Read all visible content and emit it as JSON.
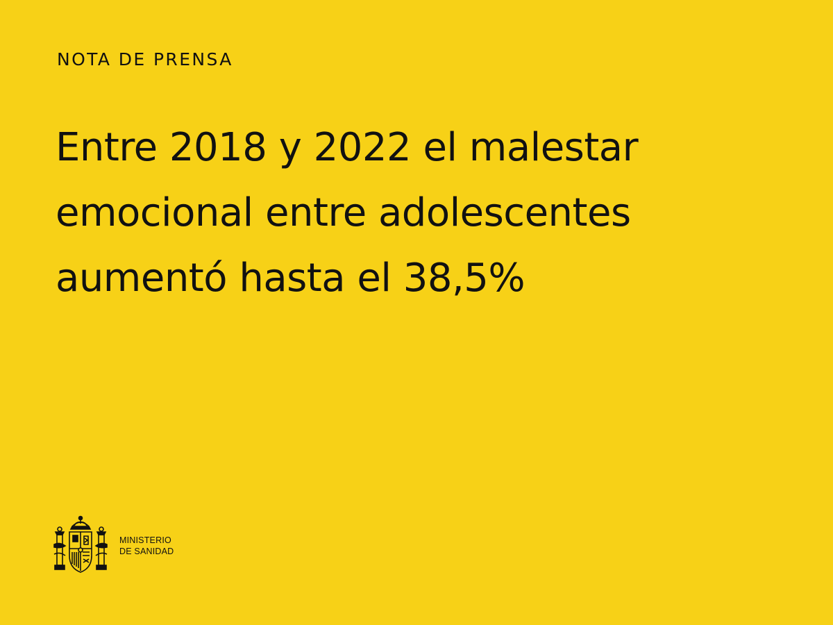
{
  "section_label": "NOTA DE PRENSA",
  "headline": {
    "lines": [
      "Entre 2018 y 2022 el malestar",
      "emocional entre adolescentes",
      "aumentó hasta el 38,5%"
    ]
  },
  "ministry": {
    "line1": "MINISTERIO",
    "line2": "DE SANIDAD"
  },
  "colors": {
    "background": "#f7d117",
    "text": "#111111"
  },
  "icons": {
    "crest": "spain-coat-of-arms-icon"
  }
}
